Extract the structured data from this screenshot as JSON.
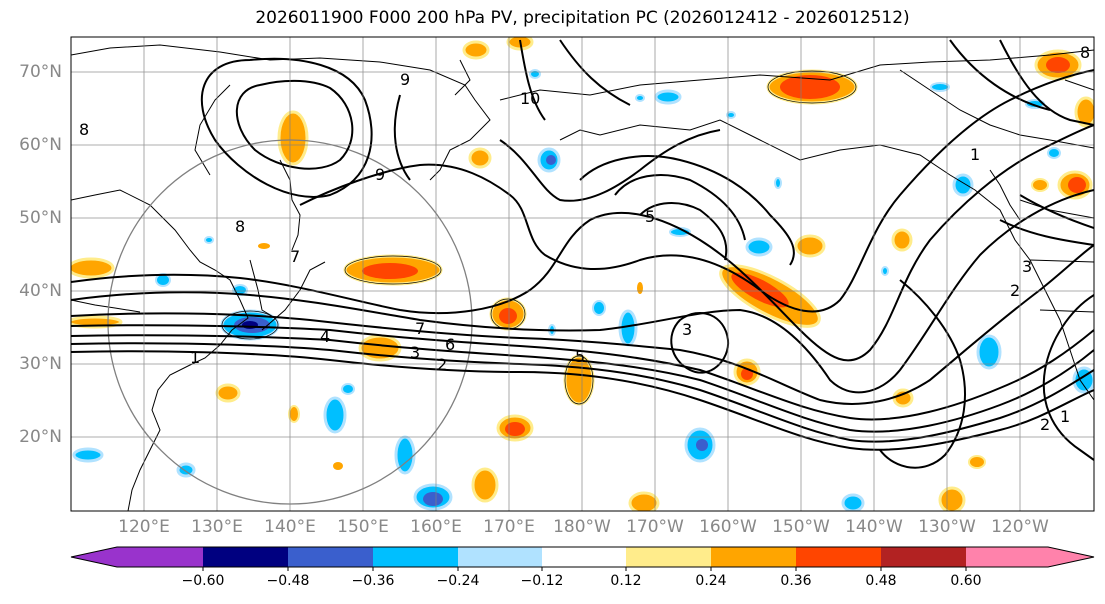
{
  "title": "2026011900 F000 200 hPa PV, precipitation PC (2026012412 - 2026012512)",
  "lat_labels": [
    "70°N",
    "60°N",
    "50°N",
    "40°N",
    "30°N",
    "20°N"
  ],
  "lon_labels": [
    "120°E",
    "130°E",
    "140°E",
    "150°E",
    "160°E",
    "170°E",
    "180°W",
    "170°W",
    "160°W",
    "150°W",
    "140°W",
    "130°W",
    "120°W"
  ],
  "colorbar": {
    "tick_labels": [
      "−0.60",
      "−0.48",
      "−0.36",
      "−0.24",
      "−0.12",
      "0.12",
      "0.24",
      "0.36",
      "0.48",
      "0.60"
    ],
    "colors": [
      "#9933cc",
      "#000080",
      "#3a5fcd",
      "#00bfff",
      "#b0e2ff",
      "#ffffff",
      "#ffec8b",
      "#ffa500",
      "#ff4500",
      "#b22222",
      "#ff82ab"
    ]
  },
  "contour_labels": [
    "1",
    "2",
    "3",
    "4",
    "5",
    "6",
    "7",
    "8",
    "9",
    "10"
  ],
  "pv_shading_colors": {
    "pos_low": "#ffec8b",
    "pos_mid": "#ffa500",
    "pos_high": "#ff4500",
    "pos_max": "#b22222",
    "neg_low": "#b0e2ff",
    "neg_mid": "#00bfff",
    "neg_high": "#3a5fcd",
    "neg_max": "#000080"
  }
}
